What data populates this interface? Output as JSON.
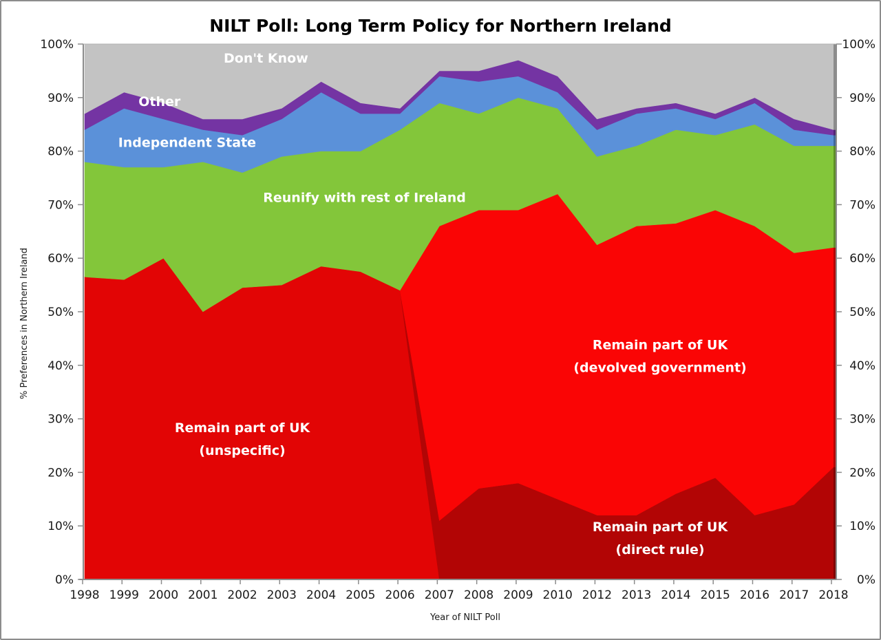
{
  "chart_data": {
    "type": "area",
    "stacked": true,
    "title": "NILT Poll: Long Term Policy for Northern Ireland",
    "xlabel": "Year of NILT Poll",
    "ylabel": "% Preferences in Northern Ireland",
    "ylim": [
      0,
      100
    ],
    "y_ticks": [
      "0%",
      "10%",
      "20%",
      "30%",
      "40%",
      "50%",
      "60%",
      "70%",
      "80%",
      "90%",
      "100%"
    ],
    "secondary_y_axis": true,
    "grid": false,
    "legend": "none (direct area labels)",
    "categories": [
      "1998",
      "1999",
      "2000",
      "2001",
      "2002",
      "2003",
      "2004",
      "2005",
      "2006",
      "2007",
      "2008",
      "2009",
      "2010",
      "2012",
      "2013",
      "2014",
      "2015",
      "2016",
      "2017",
      "2018"
    ],
    "series": [
      {
        "name": "Remain part of UK (unspecific)",
        "label_lines": [
          "Remain part of UK",
          "(unspecific)"
        ],
        "color": "#e20505",
        "values": [
          56.5,
          56,
          60,
          50,
          54.5,
          55,
          58.5,
          57.5,
          54,
          0,
          0,
          0,
          0,
          0,
          0,
          0,
          0,
          0,
          0,
          0
        ]
      },
      {
        "name": "Remain part of UK (direct rule)",
        "label_lines": [
          "Remain part of UK",
          "(direct rule)"
        ],
        "color": "#b20505",
        "values": [
          0,
          0,
          0,
          0,
          0,
          0,
          0,
          0,
          0,
          11,
          17,
          18,
          15,
          12,
          12,
          16,
          19,
          12,
          14,
          21
        ]
      },
      {
        "name": "Remain part of UK (devolved government)",
        "label_lines": [
          "Remain part of UK",
          "(devolved government)"
        ],
        "color": "#fa0505",
        "values": [
          0,
          0,
          0,
          0,
          0,
          0,
          0,
          0,
          0,
          55,
          52,
          51,
          57,
          50.5,
          54,
          50.5,
          50,
          54,
          47,
          41
        ]
      },
      {
        "name": "Reunify with rest of Ireland",
        "label_lines": [
          "Reunify with rest of Ireland"
        ],
        "color": "#83c63a",
        "values": [
          21.5,
          21,
          17,
          28,
          21.5,
          24,
          21.5,
          22.5,
          30,
          23,
          18,
          21,
          16,
          16.5,
          15,
          17.5,
          14,
          19,
          20,
          19
        ]
      },
      {
        "name": "Independent State",
        "label_lines": [
          "Independent State"
        ],
        "color": "#5b91d9",
        "values": [
          6,
          11,
          9,
          6,
          7,
          7,
          11,
          7,
          3,
          5,
          6,
          4,
          3,
          5,
          6,
          4,
          3,
          4,
          3,
          2
        ]
      },
      {
        "name": "Other",
        "label_lines": [
          "Other"
        ],
        "color": "#7434a3",
        "values": [
          3,
          3,
          3,
          2,
          3,
          2,
          2,
          2,
          1,
          1,
          2,
          3,
          3,
          2,
          1,
          1,
          1,
          1,
          2,
          1
        ]
      },
      {
        "name": "Don't Know",
        "label_lines": [
          "Don't Know"
        ],
        "color": "#c3c3c3",
        "values": [
          13,
          9,
          11,
          14,
          14,
          12,
          7,
          11,
          12,
          5,
          5,
          3,
          6,
          14,
          12,
          11,
          13,
          10,
          14,
          16
        ]
      }
    ]
  }
}
